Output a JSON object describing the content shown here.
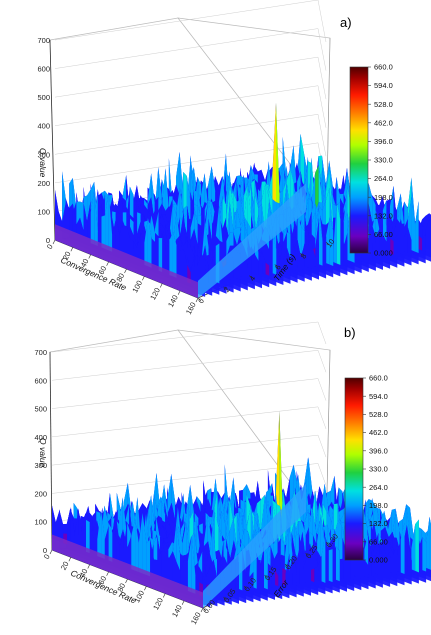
{
  "chart_data": [
    {
      "type": "surface3d",
      "panel_label": "a)",
      "zlabel": "Q value",
      "zticks": [
        "0",
        "100",
        "200",
        "300",
        "400",
        "500",
        "600",
        "700"
      ],
      "zlim": [
        0,
        700
      ],
      "xlabel": "Convergence Rate",
      "xticks": [
        "0",
        "20",
        "40",
        "60",
        "80",
        "100",
        "120",
        "140",
        "160"
      ],
      "ylabel": "Time (s)",
      "yticks": [
        "0",
        "2",
        "4",
        "6",
        "8",
        "10"
      ],
      "colorbar": {
        "ticks": [
          "660.0",
          "594.0",
          "528.0",
          "462.0",
          "396.0",
          "330.0",
          "264.0",
          "198.0",
          "132.0",
          "66.00",
          "0.000"
        ],
        "range": [
          0,
          660
        ],
        "colors": [
          "#2a0040",
          "#6a00c0",
          "#1a1aff",
          "#00a0ff",
          "#00e0e0",
          "#20d040",
          "#b0ff00",
          "#ffe000",
          "#ff8000",
          "#ff1a00",
          "#a00000",
          "#500000"
        ]
      },
      "peak_value": 530
    },
    {
      "type": "surface3d",
      "panel_label": "b)",
      "zlabel": "Q value",
      "zticks": [
        "0",
        "100",
        "200",
        "300",
        "400",
        "500",
        "600",
        "700"
      ],
      "zlim": [
        0,
        700
      ],
      "xlabel": "Convergence Rate",
      "xticks": [
        "0",
        "20",
        "40",
        "60",
        "80",
        "100",
        "120",
        "140",
        "160"
      ],
      "ylabel": "Error",
      "yticks": [
        "0.00",
        "0.05",
        "0.10",
        "0.15",
        "0.20",
        "0.25",
        "0.30"
      ],
      "colorbar": {
        "ticks": [
          "660.0",
          "594.0",
          "528.0",
          "462.0",
          "396.0",
          "330.0",
          "264.0",
          "198.0",
          "132.0",
          "66.00",
          "0.000"
        ],
        "range": [
          0,
          660
        ],
        "colors": [
          "#2a0040",
          "#6a00c0",
          "#1a1aff",
          "#00a0ff",
          "#00e0e0",
          "#20d040",
          "#b0ff00",
          "#ffe000",
          "#ff8000",
          "#ff1a00",
          "#a00000",
          "#500000"
        ]
      },
      "peak_value": 560
    }
  ]
}
